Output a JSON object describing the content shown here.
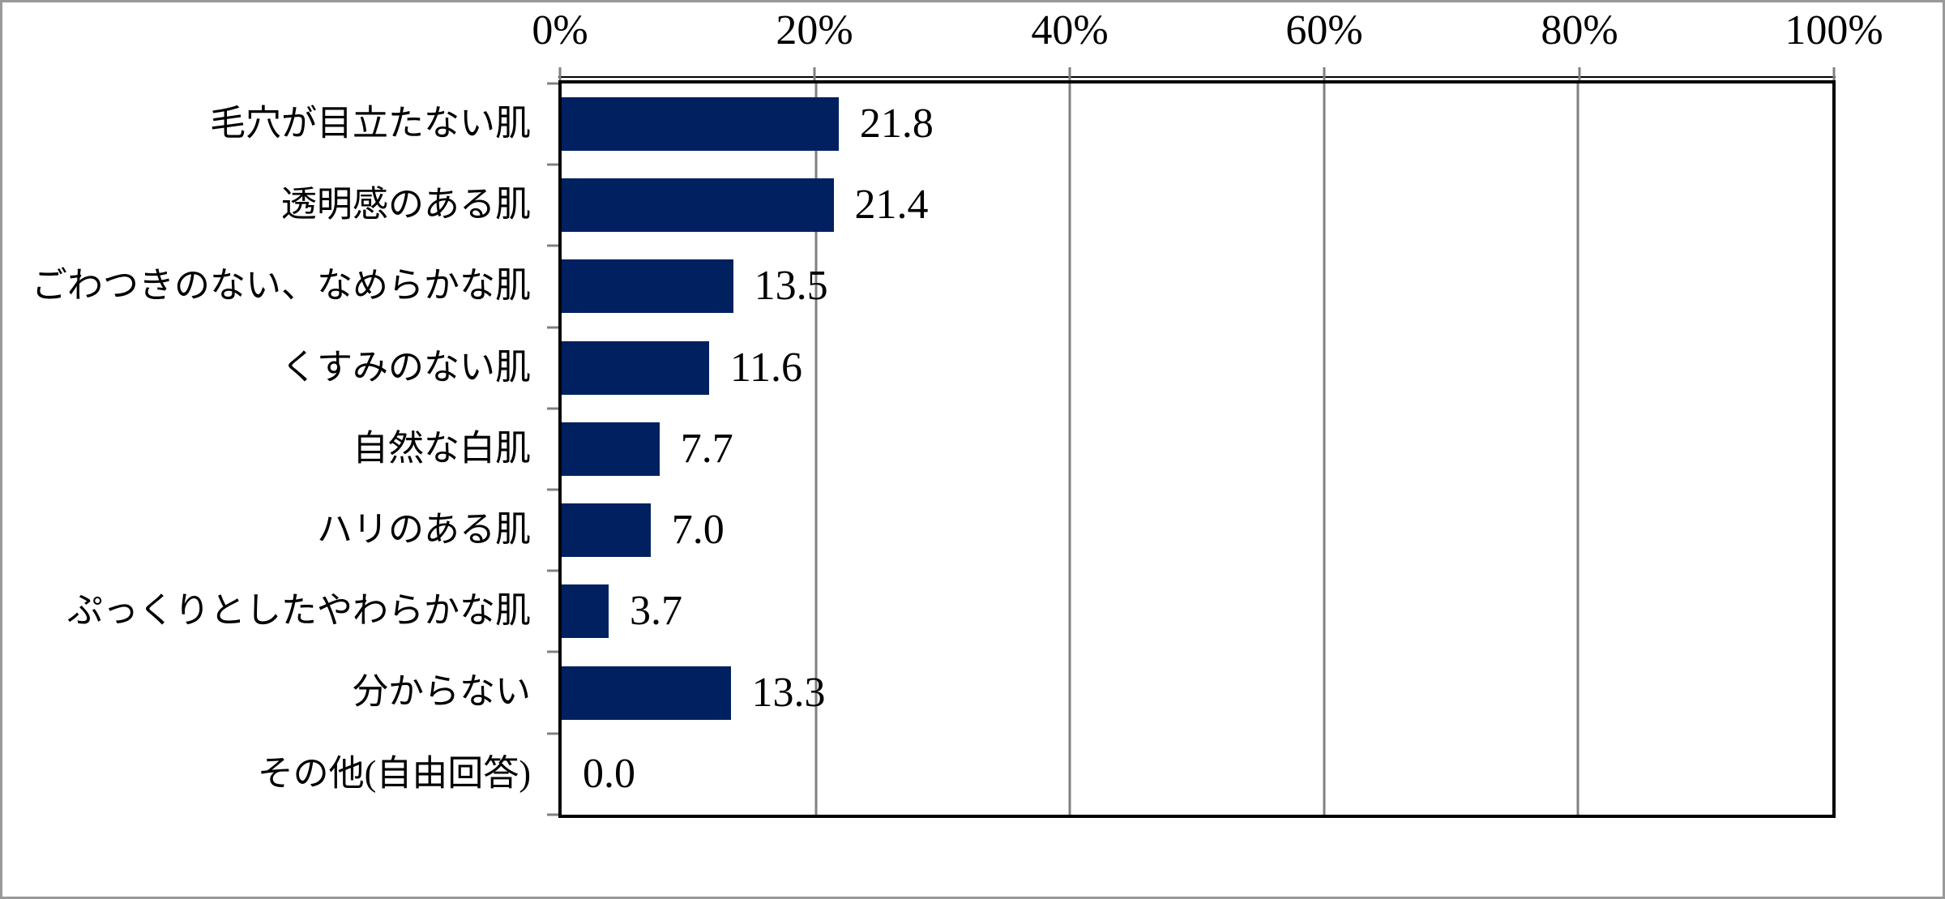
{
  "chart_data": {
    "type": "bar",
    "orientation": "horizontal",
    "title": "",
    "xlabel": "",
    "ylabel": "",
    "categories": [
      "毛穴が目立たない肌",
      "透明感のある肌",
      "ごわつきのない、なめらかな肌",
      "くすみのない肌",
      "自然な白肌",
      "ハリのある肌",
      "ぷっくりとしたやわらかな肌",
      "分からない",
      "その他(自由回答)"
    ],
    "values": [
      21.8,
      21.4,
      13.5,
      11.6,
      7.7,
      7.0,
      3.7,
      13.3,
      0.0
    ],
    "value_labels": [
      "21.8",
      "21.4",
      "13.5",
      "11.6",
      "7.7",
      "7.0",
      "3.7",
      "13.3",
      "0.0"
    ],
    "axis_ticks": [
      "0%",
      "20%",
      "40%",
      "60%",
      "80%",
      "100%"
    ],
    "xlim": [
      0,
      100
    ],
    "grid": true,
    "legend": false,
    "bar_color": "#002060",
    "gridline_color": "#808080",
    "axis_line_color": "#000000",
    "tick_color": "#808080",
    "outer_border_color": "#999999"
  }
}
